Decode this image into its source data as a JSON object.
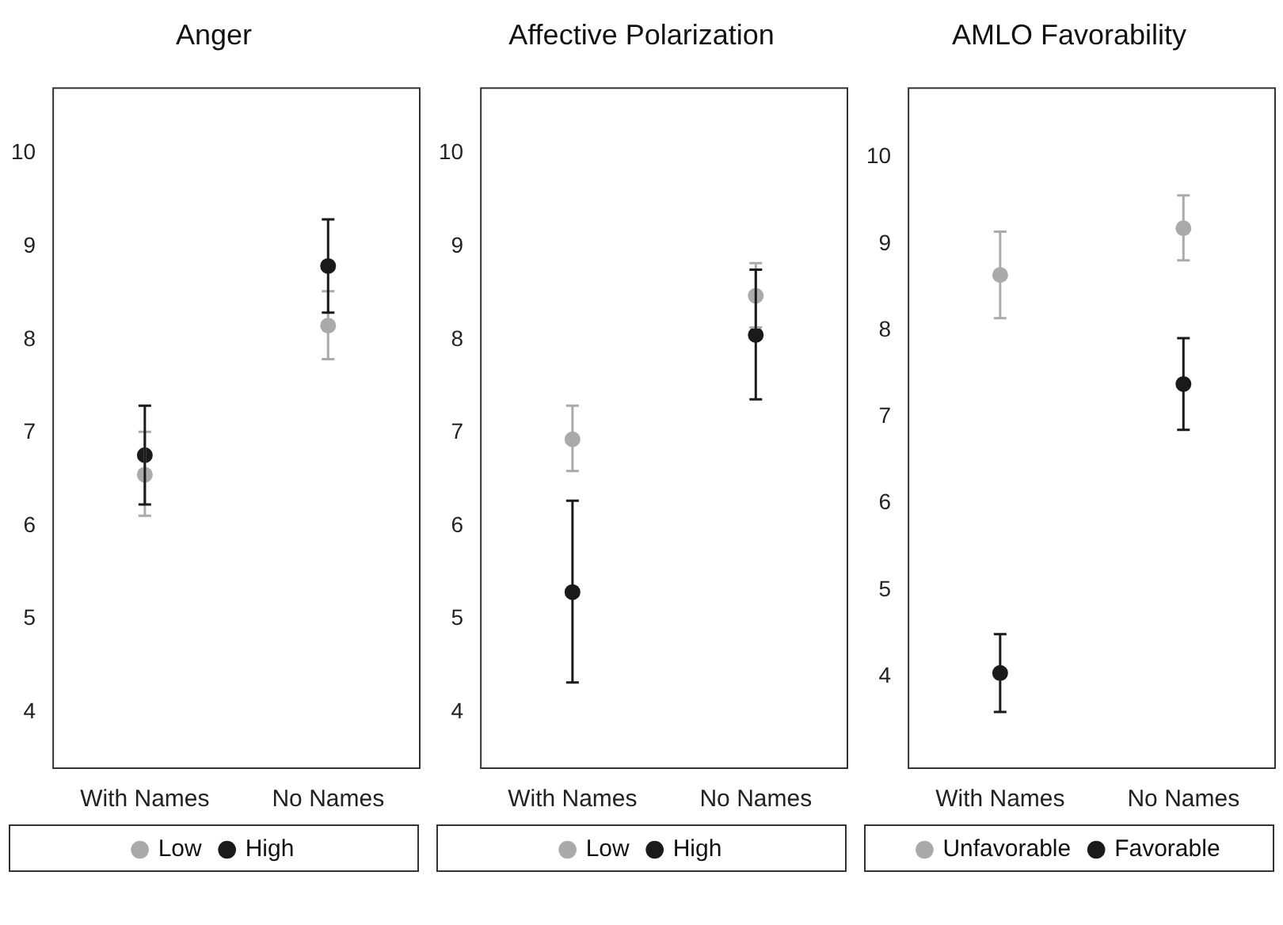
{
  "chart_data": [
    {
      "type": "scatter",
      "title": "Anger",
      "categories": [
        "With Names",
        "No Names"
      ],
      "ylim": [
        3.4,
        10.7
      ],
      "yticks": [
        4,
        5,
        6,
        7,
        8,
        9,
        10
      ],
      "grid": false,
      "legend": "bottom",
      "marker": "circle",
      "series": [
        {
          "name": "Low",
          "color": "#aaaaaa",
          "x": [
            "With Names",
            "No Names"
          ],
          "values": [
            6.55,
            8.15
          ],
          "errors": [
            [
              6.11,
              7.01
            ],
            [
              7.79,
              8.52
            ]
          ]
        },
        {
          "name": "High",
          "color": "#1a1a1a",
          "x": [
            "With Names",
            "No Names"
          ],
          "values": [
            6.76,
            8.79
          ],
          "errors": [
            [
              6.23,
              7.29
            ],
            [
              8.29,
              9.29
            ]
          ]
        }
      ]
    },
    {
      "type": "scatter",
      "title": "Affective Polarization",
      "categories": [
        "With Names",
        "No Names"
      ],
      "ylim": [
        3.4,
        10.7
      ],
      "yticks": [
        4,
        5,
        6,
        7,
        8,
        9,
        10
      ],
      "grid": false,
      "legend": "bottom",
      "marker": "circle",
      "series": [
        {
          "name": "Low",
          "color": "#aaaaaa",
          "x": [
            "With Names",
            "No Names"
          ],
          "values": [
            6.93,
            8.47
          ],
          "errors": [
            [
              6.59,
              7.29
            ],
            [
              8.13,
              8.82
            ]
          ]
        },
        {
          "name": "High",
          "color": "#1a1a1a",
          "x": [
            "With Names",
            "No Names"
          ],
          "values": [
            5.29,
            8.05
          ],
          "errors": [
            [
              4.32,
              6.27
            ],
            [
              7.36,
              8.75
            ]
          ]
        }
      ]
    },
    {
      "type": "scatter",
      "title": "AMLO Favorability",
      "categories": [
        "With Names",
        "No Names"
      ],
      "ylim": [
        2.94,
        10.8
      ],
      "yticks": [
        4,
        5,
        6,
        7,
        8,
        9,
        10
      ],
      "grid": false,
      "legend": "bottom",
      "marker": "circle",
      "series": [
        {
          "name": "Unfavorable",
          "color": "#aaaaaa",
          "x": [
            "With Names",
            "No Names"
          ],
          "values": [
            8.64,
            9.18
          ],
          "errors": [
            [
              8.14,
              9.14
            ],
            [
              8.81,
              9.56
            ]
          ]
        },
        {
          "name": "Favorable",
          "color": "#1a1a1a",
          "x": [
            "With Names",
            "No Names"
          ],
          "values": [
            4.04,
            7.38
          ],
          "errors": [
            [
              3.59,
              4.49
            ],
            [
              6.85,
              7.91
            ]
          ]
        }
      ]
    }
  ]
}
